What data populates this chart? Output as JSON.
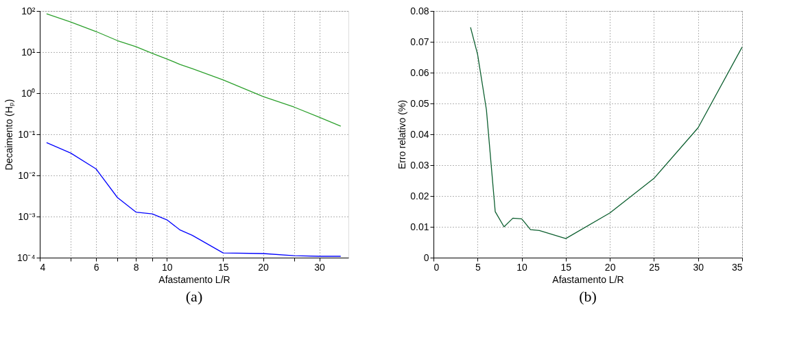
{
  "chart_data": [
    {
      "type": "line",
      "xlabel": "Afastamento L/R",
      "ylabel": "Decaimento (Hₚ)",
      "annotations": [
        "(a)"
      ],
      "log": "xy",
      "grid": true,
      "line_style": "solid",
      "x": [
        4.2,
        5,
        6,
        7,
        8,
        9,
        10,
        11,
        12,
        15,
        20,
        25,
        30,
        35
      ],
      "series": [
        {
          "color": "#2ca02c",
          "values": [
            85,
            54,
            31.6,
            19,
            13.5,
            9.3,
            6.8,
            5.0,
            3.95,
            2.1,
            0.83,
            0.46,
            0.26,
            0.158
          ]
        },
        {
          "color": "#0000ff",
          "values": [
            0.063,
            0.035,
            0.0144,
            0.0029,
            0.00128,
            0.00116,
            0.00083,
            0.00047,
            0.00035,
            0.00013,
            0.000126,
            0.000112,
            0.000108,
            0.000108
          ]
        }
      ],
      "xlim": [
        4,
        37
      ],
      "xticks": [
        4,
        {
          "value": 5,
          "label": null
        },
        6,
        {
          "value": 7,
          "label": null
        },
        8,
        {
          "value": 9,
          "label": null
        },
        10,
        15,
        20,
        {
          "value": 25,
          "label": null
        },
        30
      ],
      "ylim": [
        0.0001,
        100
      ],
      "yticks": [
        {
          "value": 0.0001,
          "label": "10⁻⁴"
        },
        {
          "value": 0.001,
          "label": "10⁻³"
        },
        {
          "value": 0.01,
          "label": "10⁻²"
        },
        {
          "value": 0.1,
          "label": "10⁻¹"
        },
        {
          "value": 1,
          "label": "10⁰"
        },
        {
          "value": 10,
          "label": "10¹"
        },
        {
          "value": 100,
          "label": "10²"
        }
      ]
    },
    {
      "type": "line",
      "xlabel": "Afastamento L/R",
      "ylabel": "Erro relativo (%)",
      "annotations": [
        "(b)"
      ],
      "grid": true,
      "line_style": "solid",
      "x": [
        4.2,
        5,
        6,
        7,
        8,
        9,
        10,
        11,
        12,
        15,
        20,
        25,
        30,
        35
      ],
      "series": [
        {
          "color": "#0b5e2e",
          "values": [
            0.0747,
            0.0659,
            0.048,
            0.0149,
            0.01,
            0.0128,
            0.0126,
            0.0091,
            0.0088,
            0.0062,
            0.0145,
            0.0257,
            0.0421,
            0.0683
          ]
        }
      ],
      "xlim": [
        0,
        35
      ],
      "xticks": [
        0,
        5,
        10,
        15,
        20,
        25,
        30,
        35
      ],
      "ylim": [
        0,
        0.08
      ],
      "yticks": [
        0,
        0.01,
        0.02,
        0.03,
        0.04,
        0.05,
        0.06,
        0.07,
        0.08
      ]
    }
  ]
}
